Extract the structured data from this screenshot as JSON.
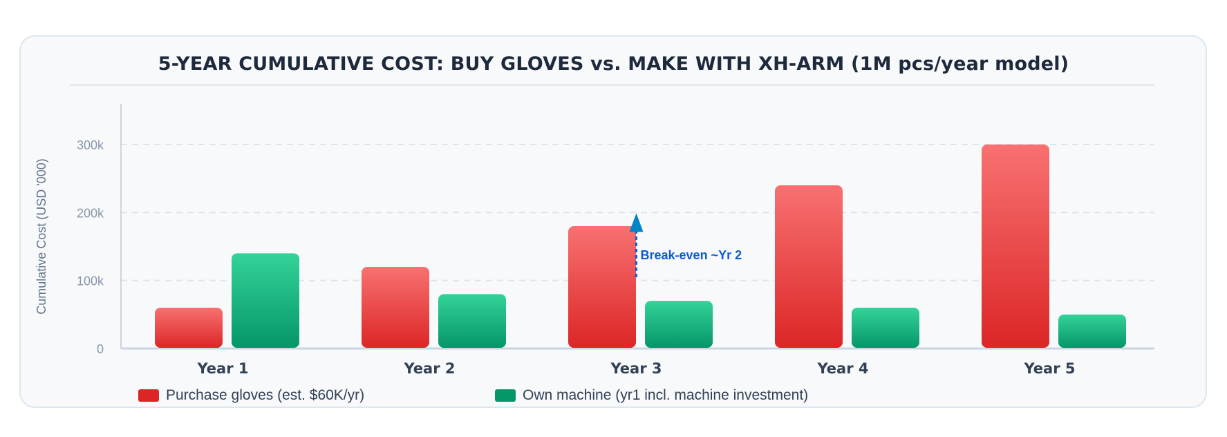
{
  "chart_data": {
    "type": "bar",
    "title": "5-YEAR CUMULATIVE COST: BUY GLOVES vs. MAKE WITH XH-ARM (1M pcs/year model)",
    "ylabel": "Cumulative Cost (USD '000)",
    "xlabel": "",
    "categories": [
      "Year 1",
      "Year 2",
      "Year 3",
      "Year 4",
      "Year 5"
    ],
    "series": [
      {
        "name": "Purchase gloves (est. $60K/yr)",
        "values": [
          60,
          120,
          180,
          240,
          300
        ],
        "color": "#dc2626",
        "color_top": "#f87171"
      },
      {
        "name": "Own machine (yr1 incl. machine investment)",
        "values": [
          140,
          80,
          70,
          60,
          50
        ],
        "color": "#059669",
        "color_top": "#34d399"
      }
    ],
    "ylim": [
      0,
      360
    ],
    "yticks": [
      0,
      100,
      200,
      300
    ],
    "ytick_labels": [
      "0",
      "100k",
      "200k",
      "300k"
    ],
    "grid": true,
    "legend_position": "bottom-left",
    "annotation": {
      "text": "Break-even ~Yr 2",
      "category": "Year 3",
      "y_from": 115,
      "y_to": 200,
      "color": "#0284c7",
      "text_color": "#0b5bd3"
    }
  }
}
